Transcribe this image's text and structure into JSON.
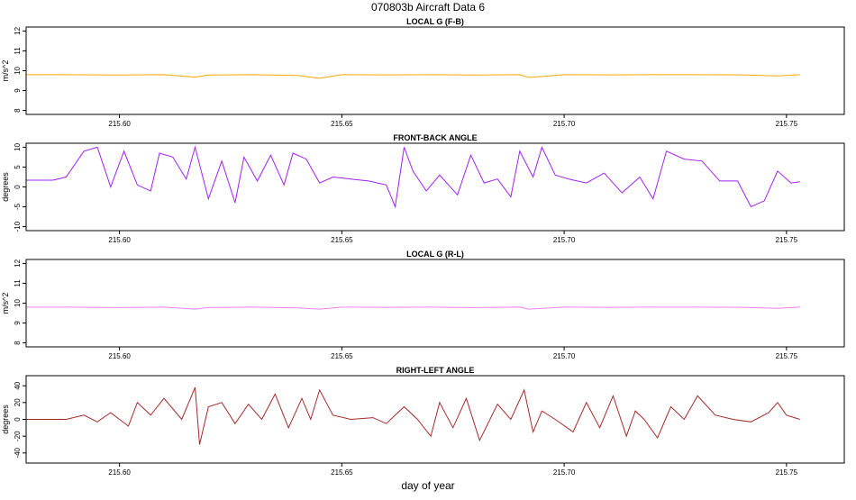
{
  "figure": {
    "title": "070803b   Aircraft Data 6",
    "xlabel": "day of year"
  },
  "chart_data": [
    {
      "type": "line",
      "title": "LOCAL G (F-B)",
      "xlabel": "",
      "ylabel": "m/s^2",
      "color": "#ffa500",
      "xlim": [
        215.579,
        215.763
      ],
      "ylim": [
        7.8,
        12.2
      ],
      "xticks": [
        215.6,
        215.65,
        215.7,
        215.75
      ],
      "xtick_labels": [
        "215.60",
        "215.65",
        "215.70",
        "215.75"
      ],
      "yticks": [
        8,
        9,
        10,
        11,
        12
      ],
      "ytick_labels": [
        "8",
        "9",
        "10",
        "11",
        "12"
      ],
      "grid": false,
      "series": [
        {
          "x": [
            215.579,
            215.588,
            215.6,
            215.61,
            215.617,
            215.62,
            215.63,
            215.64,
            215.645,
            215.65,
            215.66,
            215.67,
            215.68,
            215.69,
            215.692,
            215.7,
            215.71,
            215.72,
            215.73,
            215.74,
            215.748,
            215.753
          ],
          "y": [
            9.8,
            9.8,
            9.78,
            9.8,
            9.68,
            9.78,
            9.8,
            9.76,
            9.62,
            9.8,
            9.79,
            9.8,
            9.78,
            9.8,
            9.66,
            9.8,
            9.79,
            9.8,
            9.8,
            9.79,
            9.74,
            9.8
          ]
        }
      ]
    },
    {
      "type": "line",
      "title": "FRONT-BACK ANGLE",
      "xlabel": "",
      "ylabel": "degrees",
      "color": "#a020f0",
      "xlim": [
        215.579,
        215.763
      ],
      "ylim": [
        -11,
        11
      ],
      "xticks": [
        215.6,
        215.65,
        215.7,
        215.75
      ],
      "xtick_labels": [
        "215.60",
        "215.65",
        "215.70",
        "215.75"
      ],
      "yticks": [
        -10,
        -5,
        0,
        5,
        10
      ],
      "ytick_labels": [
        "-10",
        "-5",
        "0",
        "5",
        "10"
      ],
      "grid": false,
      "series": [
        {
          "x": [
            215.579,
            215.585,
            215.588,
            215.592,
            215.595,
            215.598,
            215.601,
            215.604,
            215.607,
            215.609,
            215.612,
            215.615,
            215.617,
            215.62,
            215.623,
            215.626,
            215.628,
            215.631,
            215.634,
            215.637,
            215.639,
            215.642,
            215.645,
            215.648,
            215.652,
            215.656,
            215.66,
            215.662,
            215.664,
            215.666,
            215.669,
            215.672,
            215.676,
            215.679,
            215.682,
            215.685,
            215.688,
            215.69,
            215.693,
            215.695,
            215.698,
            215.701,
            215.705,
            215.709,
            215.713,
            215.717,
            215.72,
            215.723,
            215.727,
            215.731,
            215.735,
            215.739,
            215.742,
            215.745,
            215.748,
            215.751,
            215.753
          ],
          "y": [
            1.7,
            1.7,
            2.5,
            9.0,
            10.0,
            0.0,
            9.0,
            0.5,
            -1.0,
            8.5,
            7.5,
            2.0,
            10.0,
            -3.0,
            6.5,
            -4.0,
            7.5,
            1.5,
            8.0,
            0.5,
            8.5,
            7.0,
            1.0,
            2.5,
            2.0,
            1.5,
            0.5,
            -5.0,
            10.0,
            4.0,
            -1.0,
            3.0,
            -2.0,
            8.0,
            1.0,
            2.0,
            -2.5,
            9.0,
            2.5,
            10.0,
            3.0,
            2.0,
            1.0,
            3.5,
            -1.5,
            2.5,
            -3.0,
            9.0,
            7.0,
            6.5,
            1.5,
            1.5,
            -5.0,
            -3.5,
            4.0,
            1.0,
            1.3
          ]
        }
      ]
    },
    {
      "type": "line",
      "title": "LOCAL G (R-L)",
      "xlabel": "",
      "ylabel": "m/s^2",
      "color": "#ee82ee",
      "xlim": [
        215.579,
        215.763
      ],
      "ylim": [
        7.8,
        12.2
      ],
      "xticks": [
        215.6,
        215.65,
        215.7,
        215.75
      ],
      "xtick_labels": [
        "215.60",
        "215.65",
        "215.70",
        "215.75"
      ],
      "yticks": [
        8,
        9,
        10,
        11,
        12
      ],
      "ytick_labels": [
        "8",
        "9",
        "10",
        "11",
        "12"
      ],
      "grid": false,
      "series": [
        {
          "x": [
            215.579,
            215.588,
            215.6,
            215.61,
            215.617,
            215.62,
            215.63,
            215.64,
            215.645,
            215.65,
            215.66,
            215.67,
            215.68,
            215.69,
            215.692,
            215.7,
            215.71,
            215.72,
            215.73,
            215.74,
            215.748,
            215.753
          ],
          "y": [
            9.8,
            9.8,
            9.78,
            9.8,
            9.7,
            9.78,
            9.8,
            9.76,
            9.7,
            9.8,
            9.79,
            9.8,
            9.78,
            9.8,
            9.7,
            9.8,
            9.79,
            9.8,
            9.8,
            9.79,
            9.74,
            9.8
          ]
        }
      ]
    },
    {
      "type": "line",
      "title": "RIGHT-LEFT ANGLE",
      "xlabel": "",
      "ylabel": "degrees",
      "color": "#a52a2a",
      "xlim": [
        215.579,
        215.763
      ],
      "ylim": [
        -52,
        52
      ],
      "xticks": [
        215.6,
        215.65,
        215.7,
        215.75
      ],
      "xtick_labels": [
        "215.60",
        "215.65",
        "215.70",
        "215.75"
      ],
      "yticks": [
        -40,
        -20,
        0,
        20,
        40
      ],
      "ytick_labels": [
        "-40",
        "-20",
        "0",
        "20",
        "40"
      ],
      "grid": false,
      "series": [
        {
          "x": [
            215.579,
            215.588,
            215.592,
            215.595,
            215.598,
            215.602,
            215.604,
            215.607,
            215.61,
            215.614,
            215.617,
            215.618,
            215.62,
            215.623,
            215.626,
            215.629,
            215.632,
            215.635,
            215.638,
            215.641,
            215.643,
            215.645,
            215.648,
            215.652,
            215.657,
            215.66,
            215.664,
            215.667,
            215.67,
            215.672,
            215.675,
            215.678,
            215.681,
            215.685,
            215.688,
            215.691,
            215.693,
            215.695,
            215.698,
            215.702,
            215.705,
            215.708,
            215.711,
            215.714,
            215.716,
            215.718,
            215.721,
            215.724,
            215.727,
            215.73,
            215.734,
            215.738,
            215.742,
            215.746,
            215.748,
            215.75,
            215.753
          ],
          "y": [
            0,
            0,
            5,
            -3,
            8,
            -8,
            20,
            5,
            25,
            0,
            38,
            -30,
            15,
            20,
            -5,
            18,
            0,
            30,
            -10,
            25,
            0,
            35,
            5,
            0,
            2,
            -5,
            15,
            0,
            -20,
            20,
            -10,
            25,
            -25,
            18,
            0,
            35,
            -15,
            10,
            0,
            -15,
            20,
            -10,
            28,
            -20,
            10,
            0,
            -22,
            15,
            0,
            28,
            5,
            0,
            -3,
            8,
            20,
            5,
            0
          ]
        }
      ]
    }
  ]
}
